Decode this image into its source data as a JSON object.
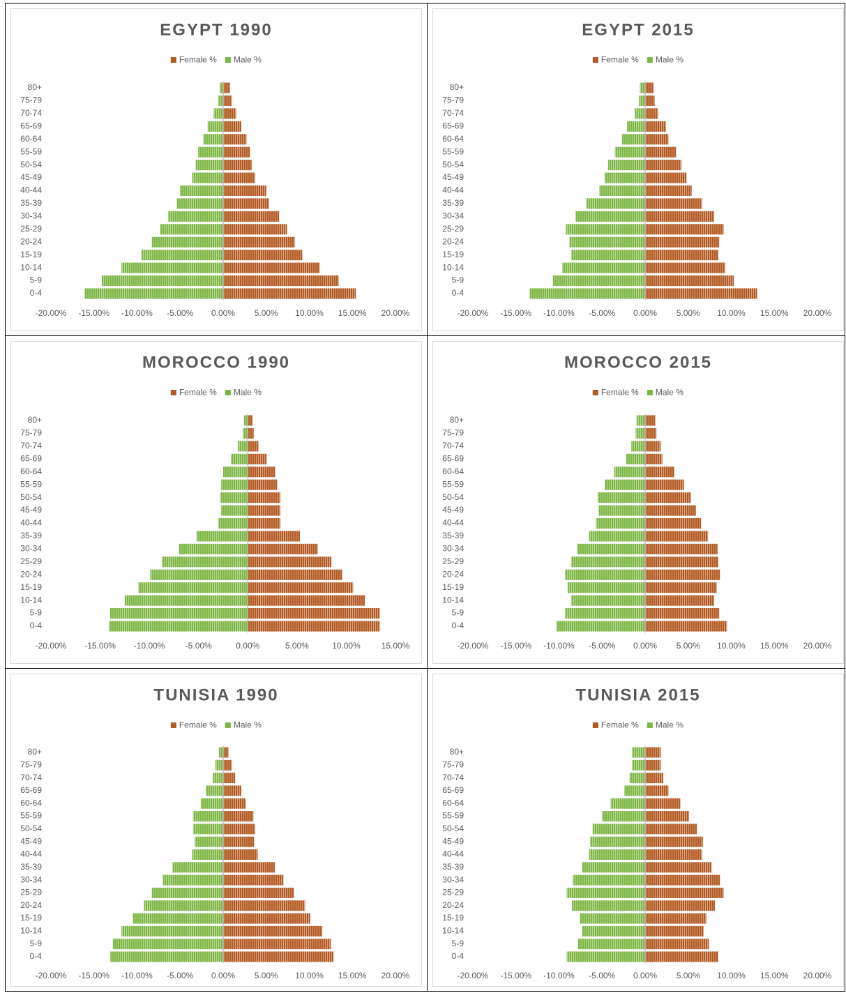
{
  "chart_data": [
    {
      "type": "pyramid",
      "title": "EGYPT 1990",
      "categories": [
        "0-4",
        "5-9",
        "10-14",
        "15-19",
        "20-24",
        "25-29",
        "30-34",
        "35-39",
        "40-44",
        "45-49",
        "50-54",
        "55-59",
        "60-64",
        "65-69",
        "70-74",
        "75-79",
        "80+"
      ],
      "series": [
        {
          "name": "Female %",
          "color": "#b35a22",
          "values": [
            15.4,
            13.4,
            11.2,
            9.2,
            8.3,
            7.4,
            6.5,
            5.3,
            5.0,
            3.7,
            3.3,
            3.1,
            2.7,
            2.1,
            1.5,
            1.0,
            0.8
          ]
        },
        {
          "name": "Male %",
          "color": "#7db644",
          "values": [
            -16.1,
            -14.1,
            -11.8,
            -9.5,
            -8.3,
            -7.3,
            -6.4,
            -5.4,
            -5.0,
            -3.6,
            -3.2,
            -2.9,
            -2.3,
            -1.8,
            -1.1,
            -0.6,
            -0.4
          ]
        }
      ],
      "xlim": [
        -20,
        20
      ],
      "xticks": [
        {
          "value": -20,
          "label": "-20.00%"
        },
        {
          "value": -15,
          "label": "-15.00%"
        },
        {
          "value": -10,
          "label": "-10.00%"
        },
        {
          "value": -5,
          "label": "-5.00%"
        },
        {
          "value": 0,
          "label": "0.00%"
        },
        {
          "value": 5,
          "label": "5.00%"
        },
        {
          "value": 10,
          "label": "10.00%"
        },
        {
          "value": 15,
          "label": "15.00%"
        },
        {
          "value": 20,
          "label": "20.00%"
        }
      ],
      "legend": "top",
      "grid": false
    },
    {
      "type": "pyramid",
      "title": "EGYPT 2015",
      "categories": [
        "0-4",
        "5-9",
        "10-14",
        "15-19",
        "20-24",
        "25-29",
        "30-34",
        "35-39",
        "40-44",
        "45-49",
        "50-54",
        "55-59",
        "60-64",
        "65-69",
        "70-74",
        "75-79",
        "80+"
      ],
      "series": [
        {
          "name": "Female %",
          "color": "#b35a22",
          "values": [
            13.0,
            10.3,
            9.3,
            8.5,
            8.6,
            9.1,
            8.0,
            6.6,
            5.4,
            4.8,
            4.2,
            3.6,
            2.7,
            2.4,
            1.5,
            1.1,
            1.0
          ]
        },
        {
          "name": "Male %",
          "color": "#7db644",
          "values": [
            -13.4,
            -10.7,
            -9.6,
            -8.6,
            -8.8,
            -9.2,
            -8.1,
            -6.8,
            -5.3,
            -4.7,
            -4.3,
            -3.5,
            -2.7,
            -2.1,
            -1.2,
            -0.7,
            -0.6
          ]
        }
      ],
      "xlim": [
        -20,
        20
      ],
      "xticks": [
        {
          "value": -20,
          "label": "-20.00%"
        },
        {
          "value": -15,
          "label": "-15.00%"
        },
        {
          "value": -10,
          "label": "-10.00%"
        },
        {
          "value": -5,
          "label": "-5.00%"
        },
        {
          "value": 0,
          "label": "0.00%"
        },
        {
          "value": 5,
          "label": "5.00%"
        },
        {
          "value": 10,
          "label": "10.00%"
        },
        {
          "value": 15,
          "label": "15.00%"
        },
        {
          "value": 20,
          "label": "20.00%"
        }
      ],
      "legend": "top",
      "grid": false
    },
    {
      "type": "pyramid",
      "title": "MOROCCO 1990",
      "categories": [
        "0-4",
        "5-9",
        "10-14",
        "15-19",
        "20-24",
        "25-29",
        "30-34",
        "35-39",
        "40-44",
        "45-49",
        "50-54",
        "55-59",
        "60-64",
        "65-69",
        "70-74",
        "75-79",
        "80+"
      ],
      "series": [
        {
          "name": "Female %",
          "color": "#b35a22",
          "values": [
            13.4,
            13.4,
            11.9,
            10.7,
            9.6,
            8.5,
            7.1,
            5.3,
            3.3,
            3.3,
            3.3,
            3.0,
            2.8,
            1.9,
            1.1,
            0.6,
            0.5
          ]
        },
        {
          "name": "Male %",
          "color": "#7db644",
          "values": [
            -14.1,
            -14.0,
            -12.5,
            -11.1,
            -9.9,
            -8.7,
            -7.0,
            -5.2,
            -3.0,
            -2.7,
            -2.8,
            -2.7,
            -2.5,
            -1.7,
            -1.0,
            -0.5,
            -0.4
          ]
        }
      ],
      "xlim": [
        -20,
        15
      ],
      "xticks": [
        {
          "value": -20,
          "label": "-20.00%"
        },
        {
          "value": -15,
          "label": "-15.00%"
        },
        {
          "value": -10,
          "label": "-10.00%"
        },
        {
          "value": -5,
          "label": "-5.00%"
        },
        {
          "value": 0,
          "label": "0.00%"
        },
        {
          "value": 5,
          "label": "5.00%"
        },
        {
          "value": 10,
          "label": "10.00%"
        },
        {
          "value": 15,
          "label": "15.00%"
        }
      ],
      "legend": "top",
      "grid": false
    },
    {
      "type": "pyramid",
      "title": "MOROCCO 2015",
      "categories": [
        "0-4",
        "5-9",
        "10-14",
        "15-19",
        "20-24",
        "25-29",
        "30-34",
        "35-39",
        "40-44",
        "45-49",
        "50-54",
        "55-59",
        "60-64",
        "65-69",
        "70-74",
        "75-79",
        "80+"
      ],
      "series": [
        {
          "name": "Female %",
          "color": "#b35a22",
          "values": [
            9.5,
            8.6,
            8.0,
            8.3,
            8.7,
            8.5,
            8.4,
            7.3,
            6.5,
            5.9,
            5.3,
            4.5,
            3.4,
            2.0,
            1.8,
            1.3,
            1.2
          ]
        },
        {
          "name": "Male %",
          "color": "#7db644",
          "values": [
            -10.3,
            -9.3,
            -8.6,
            -9.0,
            -9.3,
            -8.6,
            -7.9,
            -6.5,
            -5.7,
            -5.4,
            -5.5,
            -4.7,
            -3.6,
            -2.2,
            -1.6,
            -1.1,
            -1.0
          ]
        }
      ],
      "xlim": [
        -20,
        20
      ],
      "xticks": [
        {
          "value": -20,
          "label": "-20.00%"
        },
        {
          "value": -15,
          "label": "-15.00%"
        },
        {
          "value": -10,
          "label": "-10.00%"
        },
        {
          "value": -5,
          "label": "-5.00%"
        },
        {
          "value": 0,
          "label": "0.00%"
        },
        {
          "value": 5,
          "label": "5.00%"
        },
        {
          "value": 10,
          "label": "10.00%"
        },
        {
          "value": 15,
          "label": "15.00%"
        },
        {
          "value": 20,
          "label": "20.00%"
        }
      ],
      "legend": "top",
      "grid": false
    },
    {
      "type": "pyramid",
      "title": "TUNISIA 1990",
      "categories": [
        "0-4",
        "5-9",
        "10-14",
        "15-19",
        "20-24",
        "25-29",
        "30-34",
        "35-39",
        "40-44",
        "45-49",
        "50-54",
        "55-59",
        "60-64",
        "65-69",
        "70-74",
        "75-79",
        "80+"
      ],
      "series": [
        {
          "name": "Female %",
          "color": "#b35a22",
          "values": [
            12.8,
            12.5,
            11.5,
            10.1,
            9.5,
            8.2,
            7.0,
            6.0,
            4.0,
            3.6,
            3.7,
            3.5,
            2.6,
            2.1,
            1.4,
            1.0,
            0.6
          ]
        },
        {
          "name": "Male %",
          "color": "#7db644",
          "values": [
            -13.1,
            -12.8,
            -11.8,
            -10.5,
            -9.2,
            -8.3,
            -7.0,
            -5.9,
            -3.6,
            -3.3,
            -3.5,
            -3.5,
            -2.6,
            -2.0,
            -1.2,
            -0.9,
            -0.5
          ]
        }
      ],
      "xlim": [
        -20,
        20
      ],
      "xticks": [
        {
          "value": -20,
          "label": "-20.00%"
        },
        {
          "value": -15,
          "label": "-15.00%"
        },
        {
          "value": -10,
          "label": "-10.00%"
        },
        {
          "value": -5,
          "label": "-5.00%"
        },
        {
          "value": 0,
          "label": "0.00%"
        },
        {
          "value": 5,
          "label": "5.00%"
        },
        {
          "value": 10,
          "label": "10.00%"
        },
        {
          "value": 15,
          "label": "15.00%"
        },
        {
          "value": 20,
          "label": "20.00%"
        }
      ],
      "legend": "top",
      "grid": false
    },
    {
      "type": "pyramid",
      "title": "TUNISIA 2015",
      "categories": [
        "0-4",
        "5-9",
        "10-14",
        "15-19",
        "20-24",
        "25-29",
        "30-34",
        "35-39",
        "40-44",
        "45-49",
        "50-54",
        "55-59",
        "60-64",
        "65-69",
        "70-74",
        "75-79",
        "80+"
      ],
      "series": [
        {
          "name": "Female %",
          "color": "#b35a22",
          "values": [
            8.5,
            7.4,
            6.8,
            7.1,
            8.1,
            9.1,
            8.7,
            7.7,
            6.6,
            6.7,
            6.0,
            5.1,
            4.1,
            2.7,
            2.1,
            1.8,
            1.8
          ]
        },
        {
          "name": "Male %",
          "color": "#7db644",
          "values": [
            -9.1,
            -7.8,
            -7.3,
            -7.6,
            -8.5,
            -9.1,
            -8.4,
            -7.3,
            -6.5,
            -6.4,
            -6.1,
            -5.0,
            -4.0,
            -2.4,
            -1.8,
            -1.5,
            -1.5
          ]
        }
      ],
      "xlim": [
        -20,
        20
      ],
      "xticks": [
        {
          "value": -20,
          "label": "-20.00%"
        },
        {
          "value": -15,
          "label": "-15.00%"
        },
        {
          "value": -10,
          "label": "-10.00%"
        },
        {
          "value": -5,
          "label": "-5.00%"
        },
        {
          "value": 0,
          "label": "0.00%"
        },
        {
          "value": 5,
          "label": "5.00%"
        },
        {
          "value": 10,
          "label": "10.00%"
        },
        {
          "value": 15,
          "label": "15.00%"
        },
        {
          "value": 20,
          "label": "20.00%"
        }
      ],
      "legend": "top",
      "grid": false
    }
  ]
}
